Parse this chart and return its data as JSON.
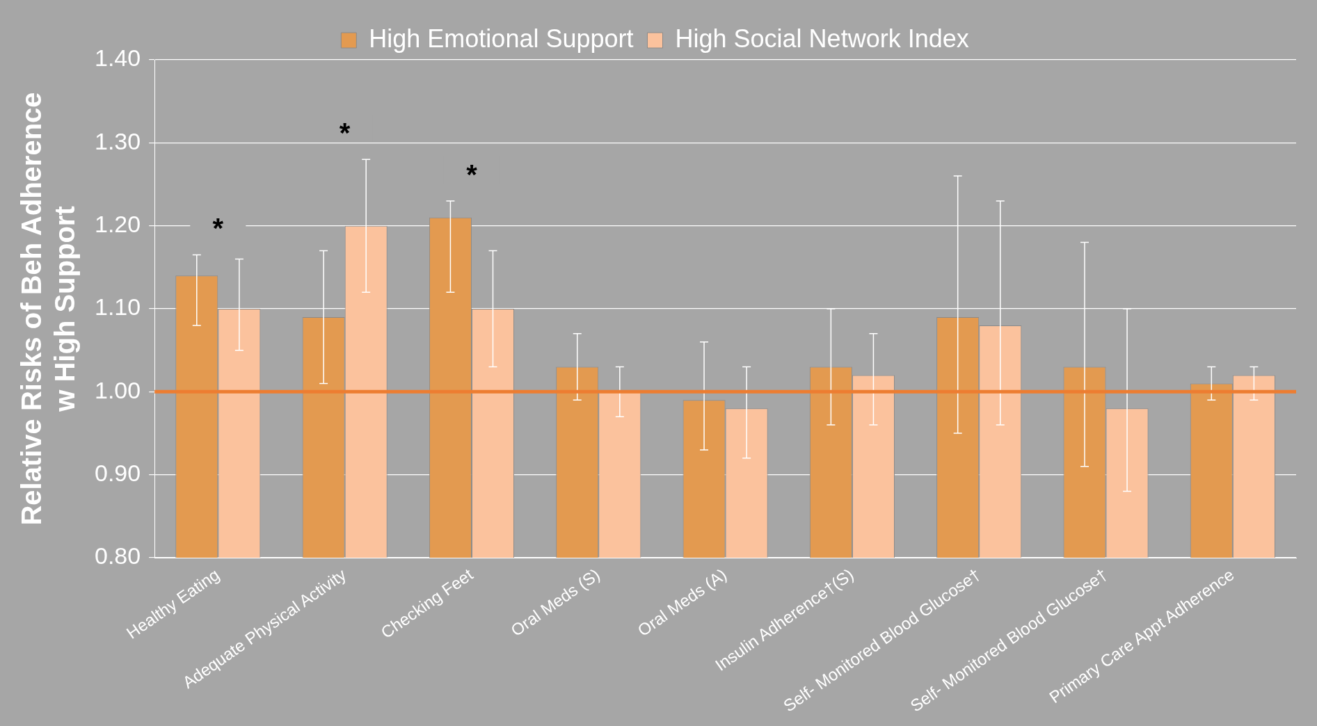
{
  "chart_data": {
    "type": "bar",
    "ylabel": "Relative Risks of Beh Adherence\nw High Support",
    "categories": [
      "Healthy Eating",
      "Adequate Physical Activity",
      "Checking Feet",
      "Oral Meds (S)",
      "Oral Meds (A)",
      "Insulin Adherence†(S)",
      "Self- Monitored Blood Glucose†",
      "Self- Monitored Blood Glucose†",
      "Primary Care Appt Adherence"
    ],
    "series": [
      {
        "name": "High Emotional Support",
        "color": "#e39a50",
        "values": [
          1.14,
          1.09,
          1.21,
          1.03,
          0.99,
          1.03,
          1.09,
          1.03,
          1.01
        ],
        "errors": [
          [
            1.08,
            1.165
          ],
          [
            1.01,
            1.17
          ],
          [
            1.12,
            1.23
          ],
          [
            0.99,
            1.07
          ],
          [
            0.93,
            1.06
          ],
          [
            0.96,
            1.1
          ],
          [
            0.95,
            1.26
          ],
          [
            0.91,
            1.18
          ],
          [
            0.99,
            1.03
          ]
        ]
      },
      {
        "name": "High Social Network Index",
        "color": "#fbc29d",
        "values": [
          1.1,
          1.2,
          1.1,
          1.0,
          0.98,
          1.02,
          1.08,
          0.98,
          1.02
        ],
        "errors": [
          [
            1.05,
            1.16
          ],
          [
            1.12,
            1.28
          ],
          [
            1.03,
            1.17
          ],
          [
            0.97,
            1.03
          ],
          [
            0.92,
            1.03
          ],
          [
            0.96,
            1.07
          ],
          [
            0.96,
            1.23
          ],
          [
            0.88,
            1.1
          ],
          [
            0.99,
            1.03
          ]
        ]
      }
    ],
    "ylim": [
      0.8,
      1.4
    ],
    "yticks": [
      {
        "value": 0.8,
        "label": "0.80"
      },
      {
        "value": 0.9,
        "label": "0.90"
      },
      {
        "value": 1.0,
        "label": "1.00"
      },
      {
        "value": 1.1,
        "label": "1.10"
      },
      {
        "value": 1.2,
        "label": "1.20"
      },
      {
        "value": 1.3,
        "label": "1.30"
      },
      {
        "value": 1.4,
        "label": "1.40"
      }
    ],
    "grid": "y",
    "legend": "top",
    "ref_lines": [
      {
        "axis": "y",
        "value": 1.0,
        "color": "#ed7d31"
      }
    ],
    "annotations": [
      "*",
      "*",
      "*"
    ]
  }
}
